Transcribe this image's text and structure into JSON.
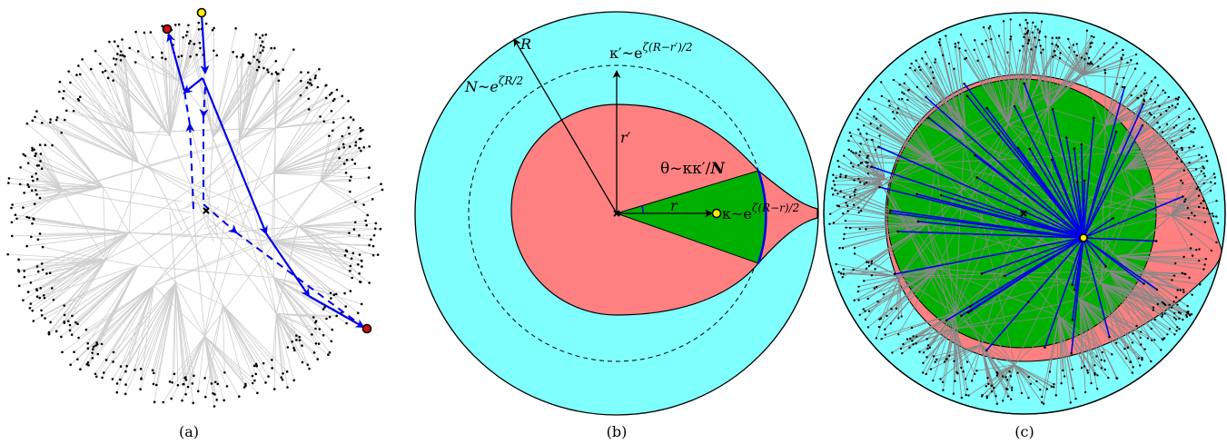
{
  "panels": {
    "a": {
      "caption": "(a)"
    },
    "b": {
      "caption": "(b)",
      "labels": {
        "R": "R",
        "N": "N~e",
        "N_exp": "ζR/2",
        "kprime": "κ′~e",
        "kprime_exp": "ζ(R−r′)/2",
        "rprime": "r′",
        "theta": "θ~κκ′/",
        "theta_N": "N",
        "r": "r",
        "kappa": "κ~e",
        "kappa_exp": "ζ(R−r)/2"
      }
    },
    "c": {
      "caption": "(c)"
    }
  },
  "colors": {
    "cyan": "#80ffff",
    "salmon": "#ff8080",
    "green": "#00b000",
    "blue": "#0000e6",
    "edge_gray_light": "#cfcfcf",
    "edge_gray_dark": "#888888",
    "node": "#000000",
    "target_red": "#cc1111",
    "source_yellow": "#ffee00"
  }
}
